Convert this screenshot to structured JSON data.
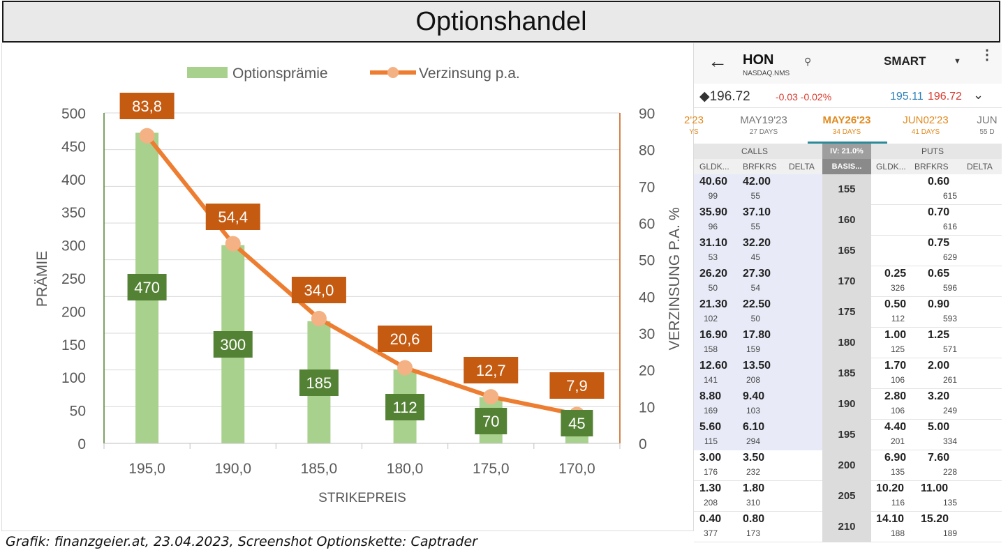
{
  "header": {
    "title": "Optionshandel"
  },
  "caption": "Grafik: finanzgeier.at, 23.04.2023, Screenshot Optionskette: Captrader",
  "colors": {
    "bar": "#a9d18e",
    "bar_label_bg": "#548235",
    "line": "#ed7d31",
    "marker": "#f4b183",
    "line_label_bg": "#c55a11",
    "left_axis": "#548235",
    "right_axis": "#c55a11"
  },
  "chart_data": {
    "type": "bar",
    "title": "",
    "categories": [
      "195,0",
      "190,0",
      "185,0",
      "180,0",
      "175,0",
      "170,0"
    ],
    "series": [
      {
        "name": "Optionsprämie",
        "type": "bar",
        "axis": "left",
        "values": [
          470,
          300,
          185,
          112,
          70,
          45
        ],
        "labels": [
          "470",
          "300",
          "185",
          "112",
          "70",
          "45"
        ]
      },
      {
        "name": "Verzinsung p.a.",
        "type": "line",
        "axis": "right",
        "values": [
          83.8,
          54.4,
          34.0,
          20.6,
          12.7,
          7.9
        ],
        "labels": [
          "83,8",
          "54,4",
          "34,0",
          "20,6",
          "12,7",
          "7,9"
        ]
      }
    ],
    "xlabel": "STRIKEPREIS",
    "ylabel": "PRÄMIE",
    "y2label": "VERZINSUNG P.A. %",
    "ylim": [
      0,
      500
    ],
    "y2lim": [
      0,
      90
    ],
    "yticks": [
      "0",
      "50",
      "100",
      "150",
      "200",
      "250",
      "300",
      "350",
      "400",
      "450",
      "500"
    ],
    "y2ticks": [
      "0",
      "10",
      "20",
      "30",
      "40",
      "50",
      "60",
      "70",
      "80",
      "90"
    ],
    "grid": true,
    "legend": "top"
  },
  "chain": {
    "back_icon": "arrow-left-icon",
    "symbol": "HON",
    "exchange": "NASDAQ.NMS",
    "search_icon": "search-icon",
    "routing": "SMART",
    "quote": {
      "last": "◆196.72",
      "change": "-0.03 -0.02%",
      "bid": "195.11",
      "ask": "196.72"
    },
    "expiries": [
      {
        "date": "2'23",
        "days": "YS",
        "active": false
      },
      {
        "date": "MAY19'23",
        "days": "27 DAYS",
        "active": false
      },
      {
        "date": "MAY26'23",
        "days": "34 DAYS",
        "active": true
      },
      {
        "date": "JUN02'23",
        "days": "41 DAYS",
        "active": false
      },
      {
        "date": "JUN",
        "days": "55 D",
        "active": false
      }
    ],
    "headers": {
      "calls": "CALLS",
      "iv": "IV: 21.0%",
      "puts": "PUTS",
      "columns": [
        "GLDK...",
        "BRFKRS",
        "DELTA",
        "BASIS...",
        "GLDK...",
        "BRFKRS",
        "DELTA"
      ]
    },
    "rows": [
      {
        "strike": "155",
        "call_bid": "40.60",
        "call_bid_size": "99",
        "call_ask": "42.00",
        "call_ask_size": "55",
        "put_bid": "",
        "put_bid_size": "",
        "put_ask": "0.60",
        "put_ask_size": "615",
        "itm_call": true
      },
      {
        "strike": "160",
        "call_bid": "35.90",
        "call_bid_size": "96",
        "call_ask": "37.10",
        "call_ask_size": "55",
        "put_bid": "",
        "put_bid_size": "",
        "put_ask": "0.70",
        "put_ask_size": "616",
        "itm_call": true
      },
      {
        "strike": "165",
        "call_bid": "31.10",
        "call_bid_size": "53",
        "call_ask": "32.20",
        "call_ask_size": "45",
        "put_bid": "",
        "put_bid_size": "",
        "put_ask": "0.75",
        "put_ask_size": "629",
        "itm_call": true
      },
      {
        "strike": "170",
        "call_bid": "26.20",
        "call_bid_size": "50",
        "call_ask": "27.30",
        "call_ask_size": "54",
        "put_bid": "0.25",
        "put_bid_size": "326",
        "put_ask": "0.65",
        "put_ask_size": "596",
        "itm_call": true
      },
      {
        "strike": "175",
        "call_bid": "21.30",
        "call_bid_size": "102",
        "call_ask": "22.50",
        "call_ask_size": "50",
        "put_bid": "0.50",
        "put_bid_size": "112",
        "put_ask": "0.90",
        "put_ask_size": "593",
        "itm_call": true
      },
      {
        "strike": "180",
        "call_bid": "16.90",
        "call_bid_size": "158",
        "call_ask": "17.80",
        "call_ask_size": "159",
        "put_bid": "1.00",
        "put_bid_size": "125",
        "put_ask": "1.25",
        "put_ask_size": "571",
        "itm_call": true
      },
      {
        "strike": "185",
        "call_bid": "12.60",
        "call_bid_size": "141",
        "call_ask": "13.50",
        "call_ask_size": "208",
        "put_bid": "1.70",
        "put_bid_size": "106",
        "put_ask": "2.00",
        "put_ask_size": "261",
        "itm_call": true
      },
      {
        "strike": "190",
        "call_bid": "8.80",
        "call_bid_size": "169",
        "call_ask": "9.40",
        "call_ask_size": "103",
        "put_bid": "2.80",
        "put_bid_size": "106",
        "put_ask": "3.20",
        "put_ask_size": "249",
        "itm_call": true
      },
      {
        "strike": "195",
        "call_bid": "5.60",
        "call_bid_size": "115",
        "call_ask": "6.10",
        "call_ask_size": "294",
        "put_bid": "4.40",
        "put_bid_size": "201",
        "put_ask": "5.00",
        "put_ask_size": "334",
        "itm_call": true
      },
      {
        "strike": "200",
        "call_bid": "3.00",
        "call_bid_size": "176",
        "call_ask": "3.50",
        "call_ask_size": "232",
        "put_bid": "6.90",
        "put_bid_size": "135",
        "put_ask": "7.60",
        "put_ask_size": "228",
        "itm_call": false
      },
      {
        "strike": "205",
        "call_bid": "1.30",
        "call_bid_size": "208",
        "call_ask": "1.80",
        "call_ask_size": "310",
        "put_bid": "10.20",
        "put_bid_size": "116",
        "put_ask": "11.00",
        "put_ask_size": "135",
        "itm_call": false
      },
      {
        "strike": "210",
        "call_bid": "0.40",
        "call_bid_size": "377",
        "call_ask": "0.80",
        "call_ask_size": "173",
        "put_bid": "14.10",
        "put_bid_size": "188",
        "put_ask": "15.20",
        "put_ask_size": "189",
        "itm_call": false
      }
    ]
  }
}
